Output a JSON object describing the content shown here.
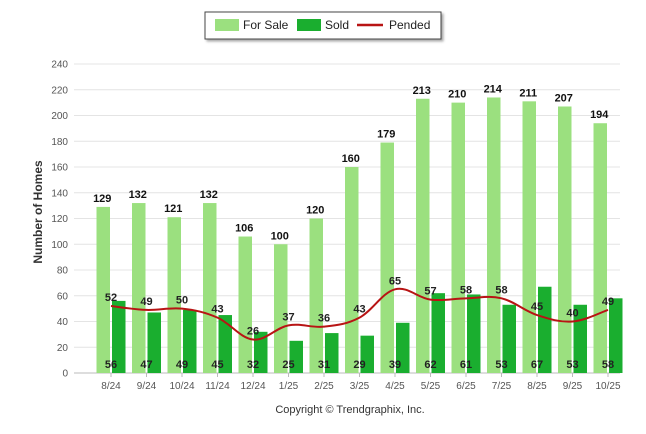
{
  "chart_data": {
    "type": "bar",
    "ylabel": "Number of Homes",
    "ylim": [
      0,
      240
    ],
    "yticks": [
      0,
      20,
      40,
      60,
      80,
      100,
      120,
      140,
      160,
      180,
      200,
      220,
      240
    ],
    "grid": true,
    "legend_position": "top-center",
    "categories": [
      "8/24",
      "9/24",
      "10/24",
      "11/24",
      "12/24",
      "1/25",
      "2/25",
      "3/25",
      "4/25",
      "5/25",
      "6/25",
      "7/25",
      "8/25",
      "9/25",
      "10/25"
    ],
    "series": [
      {
        "name": "For Sale",
        "kind": "bar",
        "color": "#9be07f",
        "values": [
          129,
          132,
          121,
          132,
          106,
          100,
          120,
          160,
          179,
          213,
          210,
          214,
          211,
          207,
          194
        ]
      },
      {
        "name": "Sold",
        "kind": "bar",
        "color": "#1aae2f",
        "values": [
          56,
          47,
          49,
          45,
          32,
          25,
          31,
          29,
          39,
          62,
          61,
          53,
          67,
          53,
          58
        ]
      },
      {
        "name": "Pended",
        "kind": "line",
        "color": "#b81414",
        "values": [
          52,
          49,
          50,
          43,
          26,
          37,
          36,
          43,
          65,
          57,
          58,
          58,
          45,
          40,
          49
        ]
      }
    ]
  },
  "footer": {
    "copyright": "Copyright © Trendgraphix, Inc."
  }
}
